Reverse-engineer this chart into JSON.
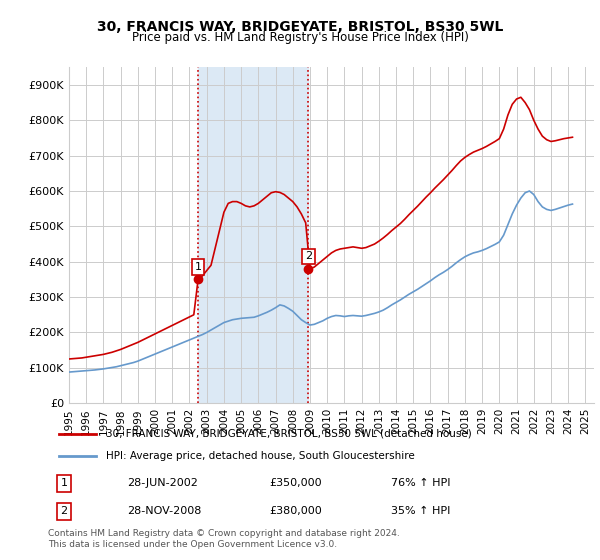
{
  "title": "30, FRANCIS WAY, BRIDGEYATE, BRISTOL, BS30 5WL",
  "subtitle": "Price paid vs. HM Land Registry's House Price Index (HPI)",
  "legend_line1": "30, FRANCIS WAY, BRIDGEYATE, BRISTOL, BS30 5WL (detached house)",
  "legend_line2": "HPI: Average price, detached house, South Gloucestershire",
  "footnote": "Contains HM Land Registry data © Crown copyright and database right 2024.\nThis data is licensed under the Open Government Licence v3.0.",
  "annotation1_label": "1",
  "annotation1_date": "28-JUN-2002",
  "annotation1_price": "£350,000",
  "annotation1_hpi": "76% ↑ HPI",
  "annotation2_label": "2",
  "annotation2_date": "28-NOV-2008",
  "annotation2_price": "£380,000",
  "annotation2_hpi": "35% ↑ HPI",
  "sale1_x": 2002.5,
  "sale1_y": 350000,
  "sale2_x": 2008.9,
  "sale2_y": 380000,
  "vline1_x": 2002.5,
  "vline2_x": 2008.9,
  "hpi_color": "#6699cc",
  "price_color": "#cc0000",
  "vline_color": "#cc0000",
  "highlight_color": "#dce9f5",
  "background_color": "#ffffff",
  "ylim": [
    0,
    950000
  ],
  "xlim_left": 1995.0,
  "xlim_right": 2025.5,
  "yticks": [
    0,
    100000,
    200000,
    300000,
    400000,
    500000,
    600000,
    700000,
    800000,
    900000
  ],
  "ytick_labels": [
    "£0",
    "£100K",
    "£200K",
    "£300K",
    "£400K",
    "£500K",
    "£600K",
    "£700K",
    "£800K",
    "£900K"
  ],
  "xticks": [
    1995,
    1996,
    1997,
    1998,
    1999,
    2000,
    2001,
    2002,
    2003,
    2004,
    2005,
    2006,
    2007,
    2008,
    2009,
    2010,
    2011,
    2012,
    2013,
    2014,
    2015,
    2016,
    2017,
    2018,
    2019,
    2020,
    2021,
    2022,
    2023,
    2024,
    2025
  ],
  "hpi_x": [
    1995.0,
    1995.25,
    1995.5,
    1995.75,
    1996.0,
    1996.25,
    1996.5,
    1996.75,
    1997.0,
    1997.25,
    1997.5,
    1997.75,
    1998.0,
    1998.25,
    1998.5,
    1998.75,
    1999.0,
    1999.25,
    1999.5,
    1999.75,
    2000.0,
    2000.25,
    2000.5,
    2000.75,
    2001.0,
    2001.25,
    2001.5,
    2001.75,
    2002.0,
    2002.25,
    2002.5,
    2002.75,
    2003.0,
    2003.25,
    2003.5,
    2003.75,
    2004.0,
    2004.25,
    2004.5,
    2004.75,
    2005.0,
    2005.25,
    2005.5,
    2005.75,
    2006.0,
    2006.25,
    2006.5,
    2006.75,
    2007.0,
    2007.25,
    2007.5,
    2007.75,
    2008.0,
    2008.25,
    2008.5,
    2008.75,
    2009.0,
    2009.25,
    2009.5,
    2009.75,
    2010.0,
    2010.25,
    2010.5,
    2010.75,
    2011.0,
    2011.25,
    2011.5,
    2011.75,
    2012.0,
    2012.25,
    2012.5,
    2012.75,
    2013.0,
    2013.25,
    2013.5,
    2013.75,
    2014.0,
    2014.25,
    2014.5,
    2014.75,
    2015.0,
    2015.25,
    2015.5,
    2015.75,
    2016.0,
    2016.25,
    2016.5,
    2016.75,
    2017.0,
    2017.25,
    2017.5,
    2017.75,
    2018.0,
    2018.25,
    2018.5,
    2018.75,
    2019.0,
    2019.25,
    2019.5,
    2019.75,
    2020.0,
    2020.25,
    2020.5,
    2020.75,
    2021.0,
    2021.25,
    2021.5,
    2021.75,
    2022.0,
    2022.25,
    2022.5,
    2022.75,
    2023.0,
    2023.25,
    2023.5,
    2023.75,
    2024.0,
    2024.25
  ],
  "hpi_y": [
    88000,
    89000,
    90000,
    91000,
    92000,
    93000,
    94000,
    95500,
    97000,
    99000,
    101000,
    103000,
    106000,
    109000,
    112000,
    115000,
    119000,
    124000,
    129000,
    134000,
    139000,
    144000,
    149000,
    154000,
    159000,
    164000,
    169000,
    174000,
    179000,
    184000,
    189000,
    194000,
    200000,
    207000,
    214000,
    221000,
    228000,
    232000,
    236000,
    238000,
    240000,
    241000,
    242000,
    243000,
    247000,
    252000,
    257000,
    263000,
    270000,
    278000,
    275000,
    268000,
    260000,
    248000,
    236000,
    228000,
    221000,
    223000,
    228000,
    233000,
    240000,
    245000,
    248000,
    247000,
    245000,
    247000,
    248000,
    247000,
    246000,
    248000,
    251000,
    254000,
    258000,
    263000,
    270000,
    278000,
    285000,
    292000,
    300000,
    308000,
    315000,
    322000,
    330000,
    338000,
    346000,
    355000,
    363000,
    370000,
    378000,
    387000,
    397000,
    406000,
    414000,
    420000,
    425000,
    428000,
    432000,
    437000,
    443000,
    449000,
    456000,
    475000,
    505000,
    535000,
    560000,
    580000,
    595000,
    600000,
    590000,
    570000,
    555000,
    548000,
    545000,
    548000,
    552000,
    556000,
    560000,
    563000
  ],
  "price_x": [
    1995.0,
    1995.25,
    1995.5,
    1995.75,
    1996.0,
    1996.25,
    1996.5,
    1996.75,
    1997.0,
    1997.25,
    1997.5,
    1997.75,
    1998.0,
    1998.25,
    1998.5,
    1998.75,
    1999.0,
    1999.25,
    1999.5,
    1999.75,
    2000.0,
    2000.25,
    2000.5,
    2000.75,
    2001.0,
    2001.25,
    2001.5,
    2001.75,
    2002.0,
    2002.25,
    2002.5,
    2002.75,
    2003.0,
    2003.25,
    2003.5,
    2003.75,
    2004.0,
    2004.25,
    2004.5,
    2004.75,
    2005.0,
    2005.25,
    2005.5,
    2005.75,
    2006.0,
    2006.25,
    2006.5,
    2006.75,
    2007.0,
    2007.25,
    2007.5,
    2007.75,
    2008.0,
    2008.25,
    2008.5,
    2008.75,
    2009.0,
    2009.25,
    2009.5,
    2009.75,
    2010.0,
    2010.25,
    2010.5,
    2010.75,
    2011.0,
    2011.25,
    2011.5,
    2011.75,
    2012.0,
    2012.25,
    2012.5,
    2012.75,
    2013.0,
    2013.25,
    2013.5,
    2013.75,
    2014.0,
    2014.25,
    2014.5,
    2014.75,
    2015.0,
    2015.25,
    2015.5,
    2015.75,
    2016.0,
    2016.25,
    2016.5,
    2016.75,
    2017.0,
    2017.25,
    2017.5,
    2017.75,
    2018.0,
    2018.25,
    2018.5,
    2018.75,
    2019.0,
    2019.25,
    2019.5,
    2019.75,
    2020.0,
    2020.25,
    2020.5,
    2020.75,
    2021.0,
    2021.25,
    2021.5,
    2021.75,
    2022.0,
    2022.25,
    2022.5,
    2022.75,
    2023.0,
    2023.25,
    2023.5,
    2023.75,
    2024.0,
    2024.25
  ],
  "price_y": [
    125000,
    126000,
    127000,
    128000,
    130000,
    132000,
    134000,
    136000,
    138000,
    141000,
    144000,
    148000,
    152000,
    157000,
    162000,
    167000,
    172000,
    178000,
    184000,
    190000,
    196000,
    202000,
    208000,
    214000,
    220000,
    226000,
    232000,
    238000,
    244000,
    250000,
    350000,
    360000,
    375000,
    390000,
    440000,
    490000,
    540000,
    565000,
    570000,
    570000,
    565000,
    558000,
    555000,
    558000,
    565000,
    575000,
    585000,
    595000,
    598000,
    596000,
    590000,
    580000,
    570000,
    555000,
    535000,
    510000,
    380000,
    385000,
    395000,
    405000,
    415000,
    425000,
    432000,
    436000,
    438000,
    440000,
    442000,
    440000,
    438000,
    440000,
    445000,
    450000,
    458000,
    467000,
    477000,
    488000,
    498000,
    508000,
    520000,
    533000,
    545000,
    557000,
    570000,
    583000,
    595000,
    608000,
    620000,
    632000,
    645000,
    658000,
    672000,
    685000,
    695000,
    703000,
    710000,
    715000,
    720000,
    726000,
    733000,
    740000,
    748000,
    775000,
    815000,
    845000,
    860000,
    865000,
    850000,
    830000,
    800000,
    775000,
    755000,
    745000,
    740000,
    742000,
    745000,
    748000,
    750000,
    752000
  ]
}
